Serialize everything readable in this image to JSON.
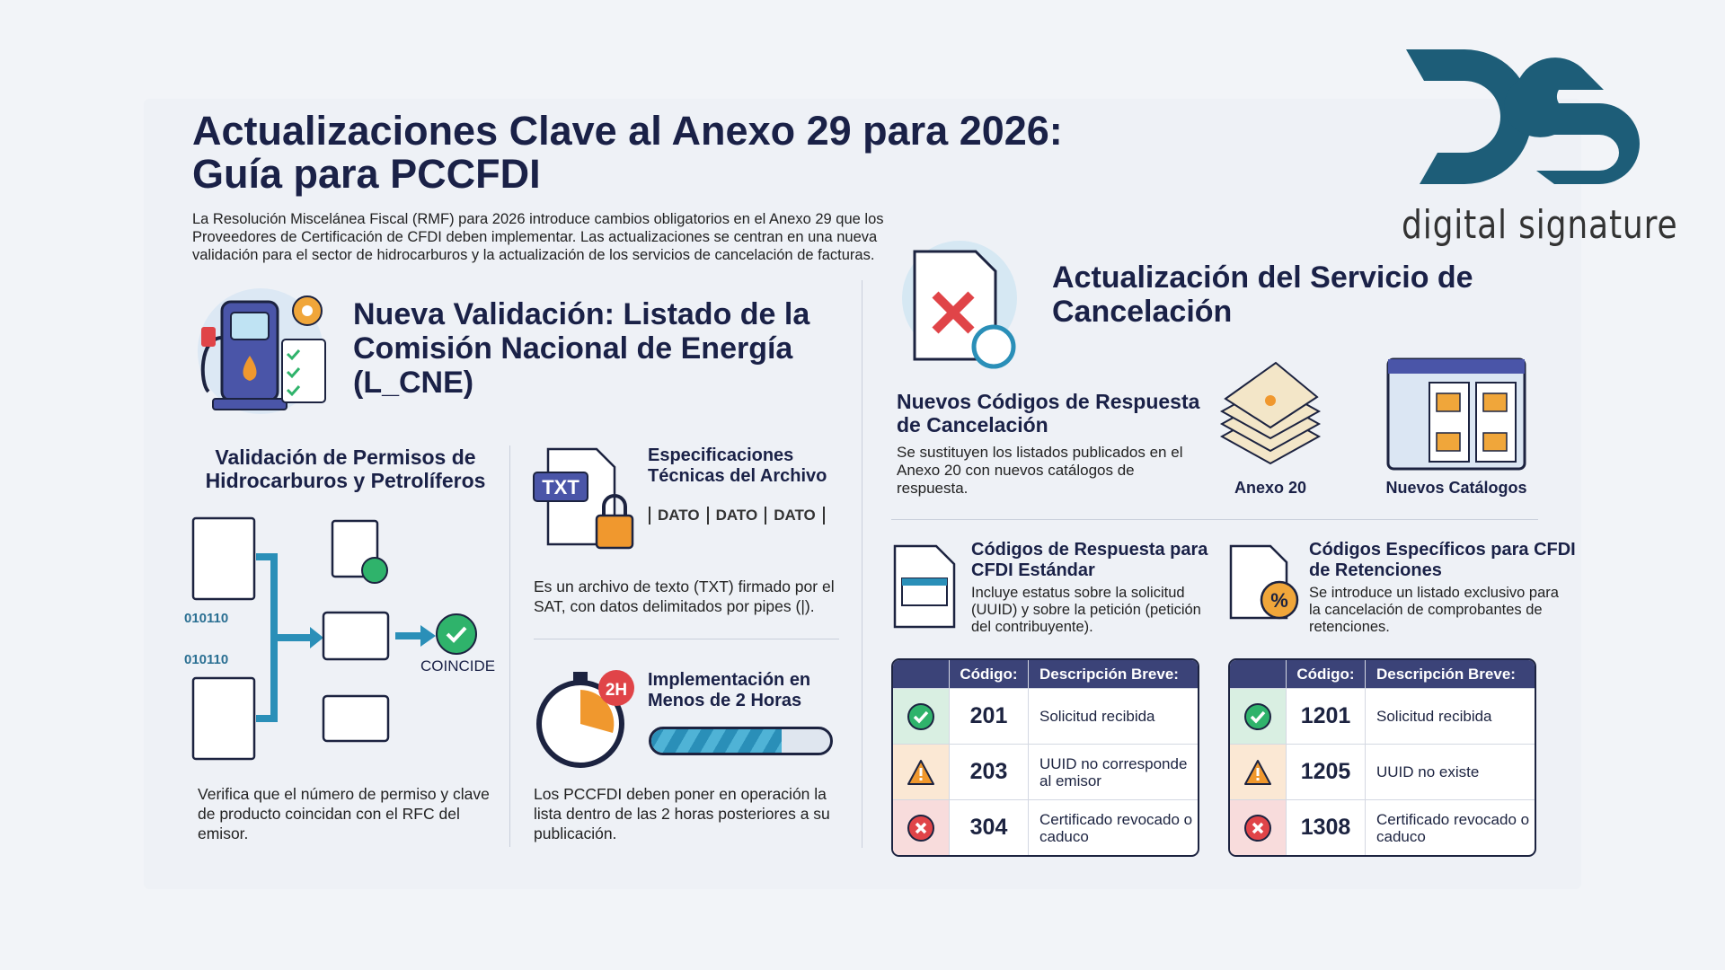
{
  "header": {
    "title": "Actualizaciones Clave al Anexo 29 para 2026: Guía para PCCFDI",
    "intro": "La Resolución Miscelánea Fiscal (RMF) para 2026 introduce cambios obligatorios en el Anexo 29 que los Proveedores de Certificación de CFDI deben implementar. Las actualizaciones se centran en una nueva validación para el sector de hidrocarburos y la actualización de los servicios de cancelación de facturas."
  },
  "logo": {
    "mark": "DS",
    "text": "digital signature",
    "color": "#1d5d78"
  },
  "left": {
    "heading": "Nueva Validación: Listado de la Comisión Nacional de Energía (L_CNE)",
    "permisos": {
      "heading": "Validación de Permisos de Hidrocarburos y Petrolíferos",
      "binary": [
        "010110",
        "010110"
      ],
      "match_label": "COINCIDE",
      "text": "Verifica que el número de permiso y clave de producto coincidan con el RFC del emisor."
    },
    "specs": {
      "heading": "Especificaciones Técnicas del Archivo",
      "file_badge": "TXT",
      "fields": [
        "DATO",
        "DATO",
        "DATO"
      ],
      "text": "Es un archivo de texto (TXT) firmado por el SAT, con datos delimitados por pipes (|)."
    },
    "impl": {
      "heading": "Implementación en Menos de 2 Horas",
      "badge": "2H",
      "progress": 0.73,
      "text": "Los PCCFDI deben poner en operación la lista dentro de las 2 horas posteriores a su publicación."
    }
  },
  "right": {
    "heading": "Actualización del Servicio de Cancelación",
    "nuevos": {
      "heading": "Nuevos Códigos de Respuesta de Cancelación",
      "text": "Se sustituyen los listados publicados en el Anexo 20 con nuevos catálogos de respuesta.",
      "anexo_label": "Anexo 20",
      "catalogos_label": "Nuevos Catálogos"
    },
    "estandar": {
      "heading": "Códigos de Respuesta para CFDI Estándar",
      "text": "Incluye estatus sobre la solicitud (UUID) y sobre la petición (petición del contribuyente).",
      "columns": [
        "Código:",
        "Descripción Breve:"
      ],
      "rows": [
        {
          "status": "success",
          "code": "201",
          "desc": "Solicitud recibida"
        },
        {
          "status": "warning",
          "code": "203",
          "desc": "UUID no corresponde al emisor"
        },
        {
          "status": "error",
          "code": "304",
          "desc": "Certificado revocado o caduco"
        }
      ]
    },
    "retenciones": {
      "heading": "Códigos Específicos para CFDI de Retenciones",
      "text": "Se introduce un listado exclusivo para la cancelación de comprobantes de retenciones.",
      "columns": [
        "Código:",
        "Descripción Breve:"
      ],
      "rows": [
        {
          "status": "success",
          "code": "1201",
          "desc": "Solicitud recibida"
        },
        {
          "status": "warning",
          "code": "1205",
          "desc": "UUID no existe"
        },
        {
          "status": "error",
          "code": "1308",
          "desc": "Certificado revocado o caduco"
        }
      ]
    }
  },
  "colors": {
    "navy": "#1a2147",
    "success": "#2fb36b",
    "warning": "#f0982e",
    "error": "#e04448",
    "accent": "#2a8fb8"
  }
}
